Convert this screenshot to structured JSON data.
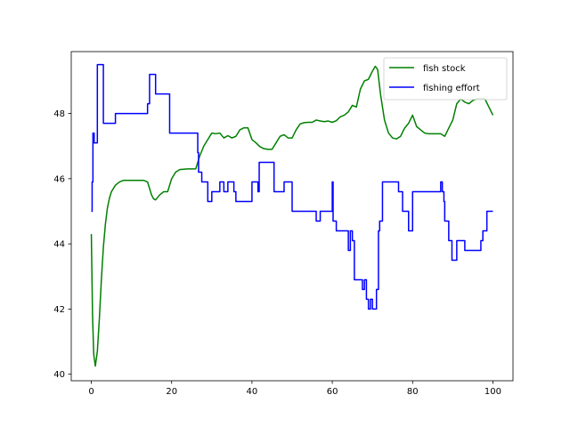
{
  "chart_data": {
    "type": "line",
    "title": "",
    "xlabel": "",
    "ylabel": "",
    "xlim": [
      -5,
      105
    ],
    "ylim": [
      39.8,
      49.9
    ],
    "x_ticks": [
      0,
      20,
      40,
      60,
      80,
      100
    ],
    "y_ticks": [
      40,
      42,
      44,
      46,
      48
    ],
    "grid": false,
    "legend_position": "top-right",
    "series": [
      {
        "name": "fish stock",
        "color": "#008000",
        "step": false,
        "points": [
          [
            0,
            44.3
          ],
          [
            0.3,
            41.8
          ],
          [
            0.6,
            40.6
          ],
          [
            1,
            40.25
          ],
          [
            1.5,
            40.7
          ],
          [
            2,
            41.7
          ],
          [
            2.5,
            42.9
          ],
          [
            3,
            43.9
          ],
          [
            3.5,
            44.6
          ],
          [
            4,
            45.1
          ],
          [
            4.5,
            45.4
          ],
          [
            5,
            45.6
          ],
          [
            6,
            45.8
          ],
          [
            7,
            45.9
          ],
          [
            8,
            45.95
          ],
          [
            10,
            45.95
          ],
          [
            13,
            45.95
          ],
          [
            14,
            45.9
          ],
          [
            14.5,
            45.7
          ],
          [
            15,
            45.5
          ],
          [
            15.5,
            45.38
          ],
          [
            16,
            45.35
          ],
          [
            17,
            45.5
          ],
          [
            18,
            45.6
          ],
          [
            19,
            45.6
          ],
          [
            20,
            46.0
          ],
          [
            21,
            46.2
          ],
          [
            22,
            46.28
          ],
          [
            24,
            46.3
          ],
          [
            26,
            46.3
          ],
          [
            27,
            46.7
          ],
          [
            28,
            47.0
          ],
          [
            29,
            47.2
          ],
          [
            30,
            47.4
          ],
          [
            31,
            47.38
          ],
          [
            32,
            47.4
          ],
          [
            33,
            47.25
          ],
          [
            34,
            47.32
          ],
          [
            35,
            47.25
          ],
          [
            36,
            47.3
          ],
          [
            37,
            47.5
          ],
          [
            38,
            47.56
          ],
          [
            39,
            47.56
          ],
          [
            40,
            47.2
          ],
          [
            41,
            47.1
          ],
          [
            42,
            46.98
          ],
          [
            43,
            46.92
          ],
          [
            44,
            46.9
          ],
          [
            45,
            46.9
          ],
          [
            46,
            47.1
          ],
          [
            47,
            47.3
          ],
          [
            48,
            47.35
          ],
          [
            49,
            47.25
          ],
          [
            50,
            47.25
          ],
          [
            51,
            47.5
          ],
          [
            52,
            47.68
          ],
          [
            53,
            47.72
          ],
          [
            54,
            47.73
          ],
          [
            55,
            47.73
          ],
          [
            56,
            47.8
          ],
          [
            57,
            47.77
          ],
          [
            58,
            47.75
          ],
          [
            59,
            47.77
          ],
          [
            60,
            47.73
          ],
          [
            61,
            47.78
          ],
          [
            62,
            47.9
          ],
          [
            63,
            47.95
          ],
          [
            64,
            48.05
          ],
          [
            65,
            48.25
          ],
          [
            66,
            48.2
          ],
          [
            67,
            48.75
          ],
          [
            68,
            49.0
          ],
          [
            69,
            49.05
          ],
          [
            70,
            49.3
          ],
          [
            70.7,
            49.45
          ],
          [
            71.3,
            49.35
          ],
          [
            72,
            48.6
          ],
          [
            73,
            47.8
          ],
          [
            74,
            47.4
          ],
          [
            75,
            47.25
          ],
          [
            76,
            47.22
          ],
          [
            77,
            47.3
          ],
          [
            78,
            47.55
          ],
          [
            79,
            47.7
          ],
          [
            80,
            47.95
          ],
          [
            81,
            47.6
          ],
          [
            82,
            47.5
          ],
          [
            83,
            47.4
          ],
          [
            84,
            47.38
          ],
          [
            85,
            47.38
          ],
          [
            86,
            47.38
          ],
          [
            87,
            47.38
          ],
          [
            88,
            47.3
          ],
          [
            89,
            47.55
          ],
          [
            90,
            47.8
          ],
          [
            91,
            48.3
          ],
          [
            92,
            48.45
          ],
          [
            93,
            48.35
          ],
          [
            94,
            48.3
          ],
          [
            95,
            48.4
          ],
          [
            96,
            48.45
          ],
          [
            97,
            48.45
          ],
          [
            98,
            48.45
          ],
          [
            99,
            48.2
          ],
          [
            100,
            47.95
          ]
        ]
      },
      {
        "name": "fishing effort",
        "color": "#0000ff",
        "step": true,
        "points": [
          [
            0,
            45.0
          ],
          [
            0.2,
            45.9
          ],
          [
            0.4,
            47.4
          ],
          [
            0.7,
            47.1
          ],
          [
            1.5,
            49.5
          ],
          [
            3,
            47.7
          ],
          [
            6,
            48.0
          ],
          [
            14,
            48.3
          ],
          [
            14.5,
            49.2
          ],
          [
            16,
            48.6
          ],
          [
            19.5,
            47.4
          ],
          [
            26.5,
            46.8
          ],
          [
            26.7,
            46.2
          ],
          [
            27.5,
            45.9
          ],
          [
            29,
            45.3
          ],
          [
            30,
            45.6
          ],
          [
            32,
            45.9
          ],
          [
            33,
            45.6
          ],
          [
            34,
            45.9
          ],
          [
            35.5,
            45.6
          ],
          [
            36,
            45.3
          ],
          [
            40,
            45.9
          ],
          [
            41.5,
            45.6
          ],
          [
            41.8,
            46.5
          ],
          [
            45.5,
            45.6
          ],
          [
            48,
            45.9
          ],
          [
            50,
            45.0
          ],
          [
            56,
            44.7
          ],
          [
            57,
            45.0
          ],
          [
            60,
            45.9
          ],
          [
            60.2,
            44.7
          ],
          [
            61,
            44.4
          ],
          [
            64,
            43.8
          ],
          [
            64.5,
            44.4
          ],
          [
            65,
            44.1
          ],
          [
            65.5,
            42.9
          ],
          [
            67.5,
            42.6
          ],
          [
            68,
            42.9
          ],
          [
            68.5,
            42.3
          ],
          [
            69,
            42.0
          ],
          [
            69.5,
            42.3
          ],
          [
            70,
            42.0
          ],
          [
            71,
            42.6
          ],
          [
            71.5,
            44.4
          ],
          [
            71.8,
            44.7
          ],
          [
            72.5,
            45.9
          ],
          [
            76.5,
            45.6
          ],
          [
            77.5,
            45.0
          ],
          [
            79,
            44.4
          ],
          [
            80,
            45.6
          ],
          [
            87,
            45.9
          ],
          [
            87.4,
            45.6
          ],
          [
            87.8,
            45.3
          ],
          [
            88,
            44.7
          ],
          [
            89,
            44.1
          ],
          [
            89.8,
            43.5
          ],
          [
            91,
            44.1
          ],
          [
            93,
            43.8
          ],
          [
            97,
            44.1
          ],
          [
            97.5,
            44.4
          ],
          [
            98.5,
            45.0
          ],
          [
            100,
            45.0
          ]
        ]
      }
    ]
  }
}
